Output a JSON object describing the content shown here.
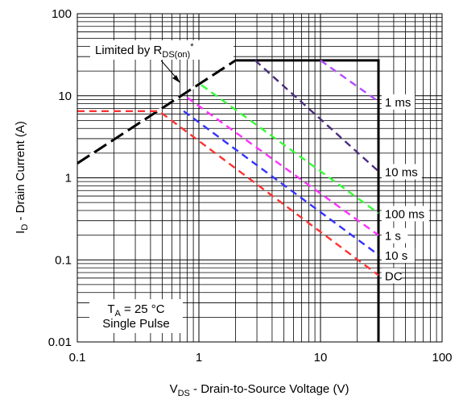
{
  "chart_data": {
    "type": "line",
    "x_scale": "log",
    "y_scale": "log",
    "xlim": [
      0.1,
      100
    ],
    "ylim": [
      0.01,
      100
    ],
    "x_tick_labels": [
      "0.1",
      "1",
      "10",
      "100"
    ],
    "y_tick_labels": [
      "100",
      "10",
      "1",
      "0.1",
      "0.01"
    ],
    "xlabel": {
      "main": "V",
      "sub": "DS",
      "rest": " - Drain-to-Source Voltage (V)"
    },
    "ylabel": {
      "main": "I",
      "sub": "D",
      "rest": " - Drain Current (A)"
    },
    "grid": true,
    "limit_label": {
      "main": "Limited by R",
      "sub": "DS(on)",
      "sup": "*"
    },
    "conditions": {
      "line1_main": "T",
      "line1_sub": "A",
      "line1_rest": " = 25 °C",
      "line2": "Single Pulse"
    },
    "boundary": {
      "color": "#000000",
      "x": [
        0.1,
        2,
        30,
        30
      ],
      "y": [
        1.5,
        27,
        27,
        0.01
      ]
    },
    "limit_line": {
      "color": "#000000",
      "x": [
        0.1,
        2
      ],
      "y": [
        1.5,
        27
      ]
    },
    "series": [
      {
        "name": "1 ms",
        "color": "#b24bff",
        "x": [
          10,
          30
        ],
        "y": [
          27,
          8.5
        ]
      },
      {
        "name": "10 ms",
        "color": "#4b2d7f",
        "x": [
          2.9,
          30
        ],
        "y": [
          27,
          1.2
        ]
      },
      {
        "name": "100 ms",
        "color": "#33ff33",
        "x": [
          1.05,
          30
        ],
        "y": [
          13.5,
          0.37
        ]
      },
      {
        "name": "1 s",
        "color": "#ff33ff",
        "x": [
          0.8,
          30
        ],
        "y": [
          9.5,
          0.2
        ]
      },
      {
        "name": "10 s",
        "color": "#3333ff",
        "x": [
          0.75,
          30
        ],
        "y": [
          6.5,
          0.115
        ]
      },
      {
        "name": "DC",
        "color": "#ff3333",
        "x": [
          0.1,
          0.47,
          30
        ],
        "y": [
          6.5,
          6.5,
          0.065
        ]
      }
    ],
    "series_labels": [
      {
        "text": "1 ms",
        "at": [
          40,
          8.5
        ]
      },
      {
        "text": "10 ms",
        "at": [
          40,
          1.2
        ]
      },
      {
        "text": "100 ms",
        "at": [
          40,
          0.37
        ]
      },
      {
        "text": "1 s",
        "at": [
          40,
          0.2
        ]
      },
      {
        "text": "10 s",
        "at": [
          40,
          0.115
        ]
      },
      {
        "text": "DC",
        "at": [
          40,
          0.065
        ]
      }
    ]
  }
}
